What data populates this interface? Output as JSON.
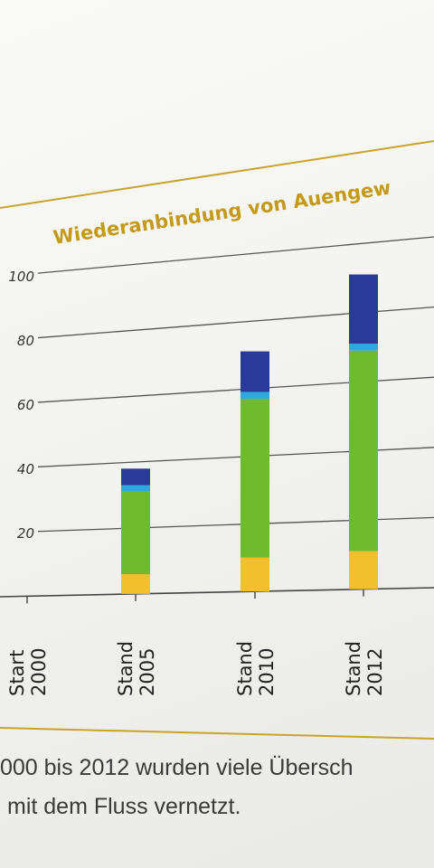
{
  "chart_data": {
    "type": "bar",
    "stacked": true,
    "title": "Wiederanbindung von Auengew",
    "ylim": [
      0,
      100
    ],
    "yticks": [
      "100",
      "80",
      "60",
      "40",
      "20"
    ],
    "categories": [
      {
        "line1": "Start",
        "line2": "2000"
      },
      {
        "line1": "Stand",
        "line2": "2005"
      },
      {
        "line1": "Stand",
        "line2": "2010"
      },
      {
        "line1": "Stand",
        "line2": "2012"
      }
    ],
    "series": [
      {
        "color": "#f2bf2d",
        "values": [
          0,
          6,
          10,
          11
        ]
      },
      {
        "color": "#6fbb2f",
        "values": [
          0,
          25,
          47,
          58
        ]
      },
      {
        "color": "#2fa8e0",
        "values": [
          0,
          2,
          2,
          2
        ]
      },
      {
        "color": "#2a3a98",
        "values": [
          0,
          5,
          12,
          20
        ]
      }
    ],
    "colors": {
      "frame_line": "#c9a32a",
      "title": "#c49a1c",
      "gridline": "#555555"
    }
  },
  "caption": {
    "line1": "000 bis 2012 wurden viele Übersch",
    "line2": "mit dem Fluss vernetzt."
  }
}
